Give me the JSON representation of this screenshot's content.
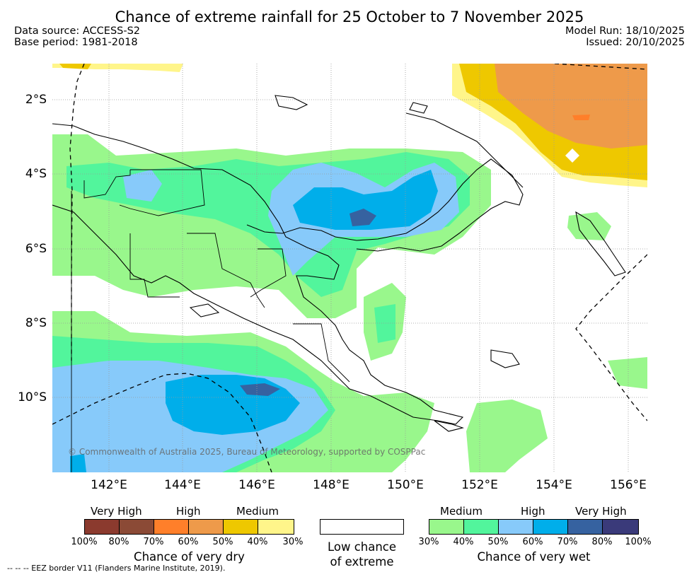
{
  "title": "Chance of extreme rainfall for 25 October to 7 November 2025",
  "meta_left": [
    "Data source: ACCESS-S2",
    "Base period: 1981-2018"
  ],
  "meta_right": [
    "Model Run: 18/10/2025",
    "Issued: 20/10/2025"
  ],
  "lat_labels": [
    "2°S",
    "4°S",
    "6°S",
    "8°S",
    "10°S"
  ],
  "lon_labels": [
    "142°E",
    "144°E",
    "146°E",
    "148°E",
    "150°E",
    "152°E",
    "154°E",
    "156°E"
  ],
  "copyright": "© Commonwealth of Australia 2025, Bureau of Meteorology, supported by COSPPac",
  "dry_legend": {
    "headings": [
      "Very High",
      "High",
      "Medium"
    ],
    "colors": [
      "#8b3a2e",
      "#8b4a36",
      "#ff7f2a",
      "#ee9a4a",
      "#eec800",
      "#fff58a"
    ],
    "ticks": [
      "100%",
      "80%",
      "70%",
      "60%",
      "50%",
      "40%",
      "30%"
    ],
    "title": "Chance of very dry"
  },
  "low_legend": {
    "line1": "Low chance",
    "line2": "of extreme"
  },
  "wet_legend": {
    "headings": [
      "Medium",
      "High",
      "Very High"
    ],
    "colors": [
      "#99f78c",
      "#52f59c",
      "#87cafa",
      "#00aeea",
      "#3662a0",
      "#3a3a7a"
    ],
    "ticks": [
      "30%",
      "40%",
      "50%",
      "60%",
      "70%",
      "80%",
      "100%"
    ],
    "title": "Chance of very wet"
  },
  "eez_note": "--  --  -- EEZ border V11 (Flanders Marine Institute, 2019)."
}
